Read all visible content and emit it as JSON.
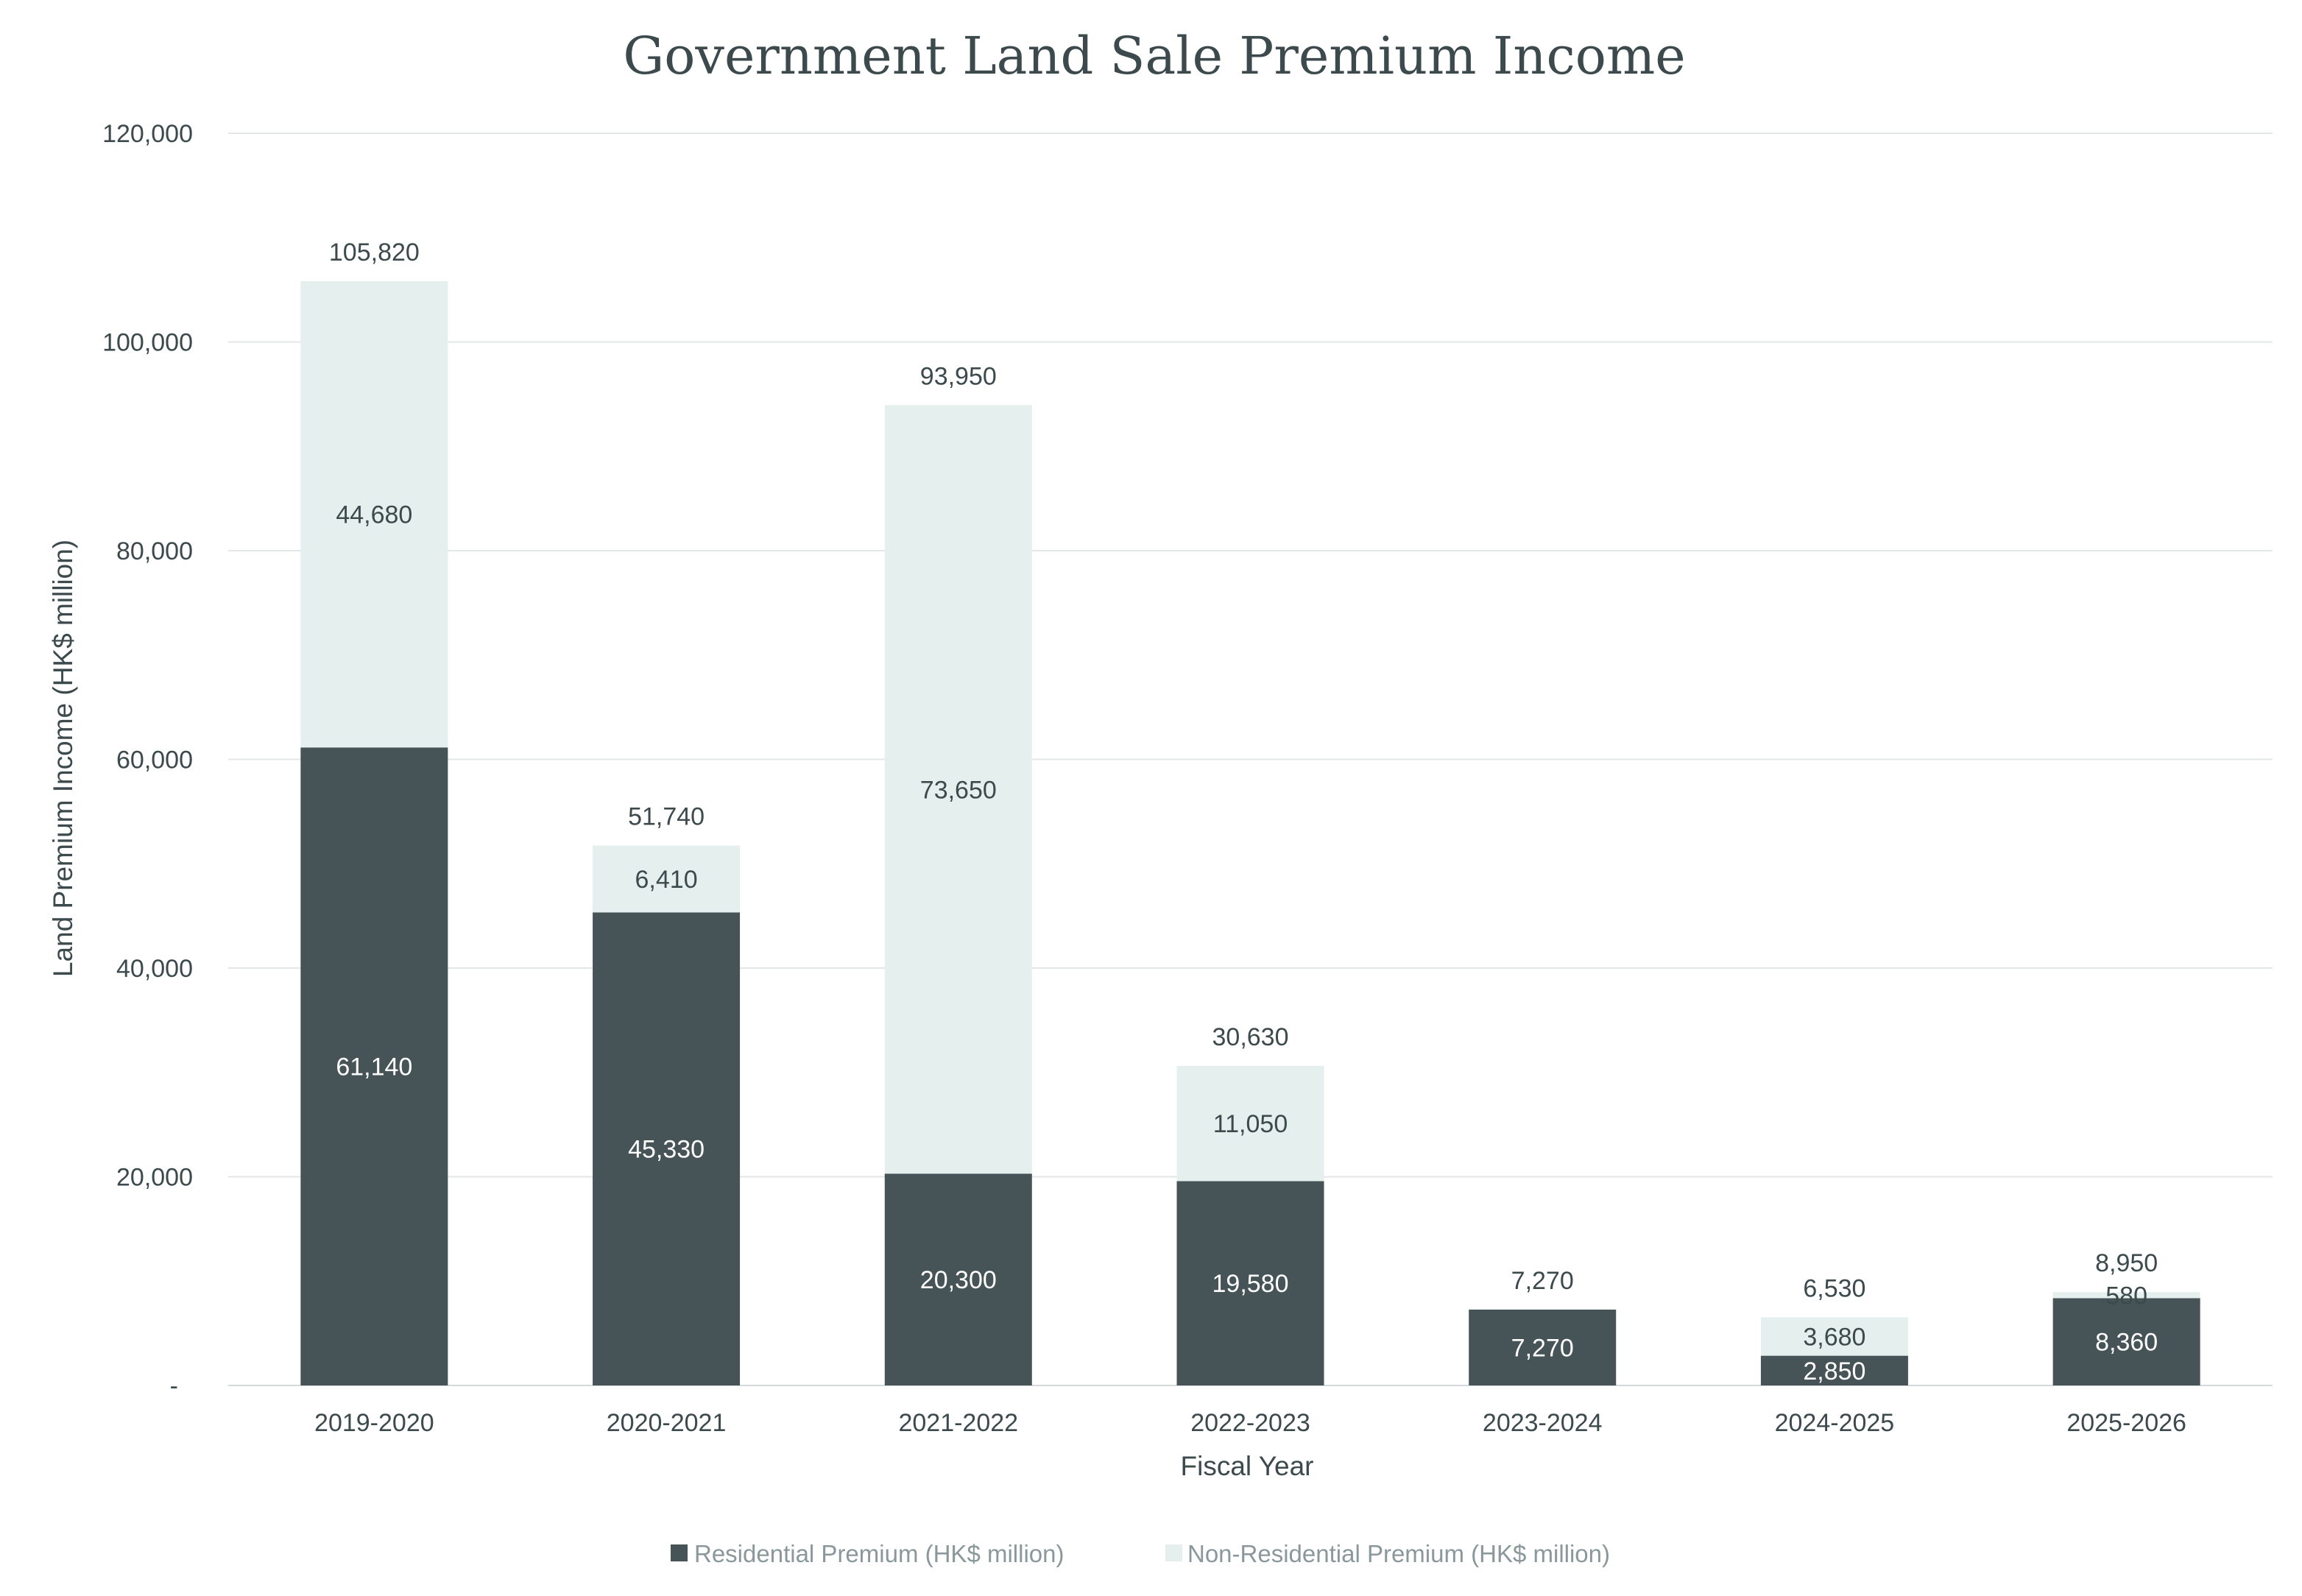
{
  "chart_data": {
    "type": "bar",
    "stacked": true,
    "title": "Government Land Sale Premium Income",
    "xlabel": "Fiscal Year",
    "ylabel": "Land Premium Income (HK$ million)",
    "ylim": [
      0,
      120000
    ],
    "yticks": [
      0,
      20000,
      40000,
      60000,
      80000,
      100000,
      120000
    ],
    "ytick_labels": [
      "-",
      "20,000",
      "40,000",
      "60,000",
      "80,000",
      "100,000",
      "120,000"
    ],
    "grid": true,
    "legend_position": "bottom",
    "categories": [
      "2019-2020",
      "2020-2021",
      "2021-2022",
      "2022-2023",
      "2023-2024",
      "2024-2025",
      "2025-2026"
    ],
    "series": [
      {
        "name": "Residential Premium (HK$ million)",
        "color": "#465357",
        "values": [
          61140,
          45330,
          20300,
          19580,
          7270,
          2850,
          8360
        ],
        "labels": [
          "61,140",
          "45,330",
          "20,300",
          "19,580",
          "7,270",
          "2,850",
          "8,360"
        ]
      },
      {
        "name": "Non-Residential Premium (HK$ million)",
        "color": "#e5efed",
        "values": [
          44680,
          6410,
          73650,
          11050,
          0,
          3680,
          580
        ],
        "labels": [
          "44,680",
          "6,410",
          "73,650",
          "11,050",
          "",
          "3,680",
          "580"
        ]
      }
    ],
    "totals": [
      105820,
      51740,
      93950,
      30630,
      7270,
      6530,
      8950
    ],
    "total_labels": [
      "105,820",
      "51,740",
      "93,950",
      "30,630",
      "7,270",
      "6,530",
      "8,950"
    ]
  }
}
